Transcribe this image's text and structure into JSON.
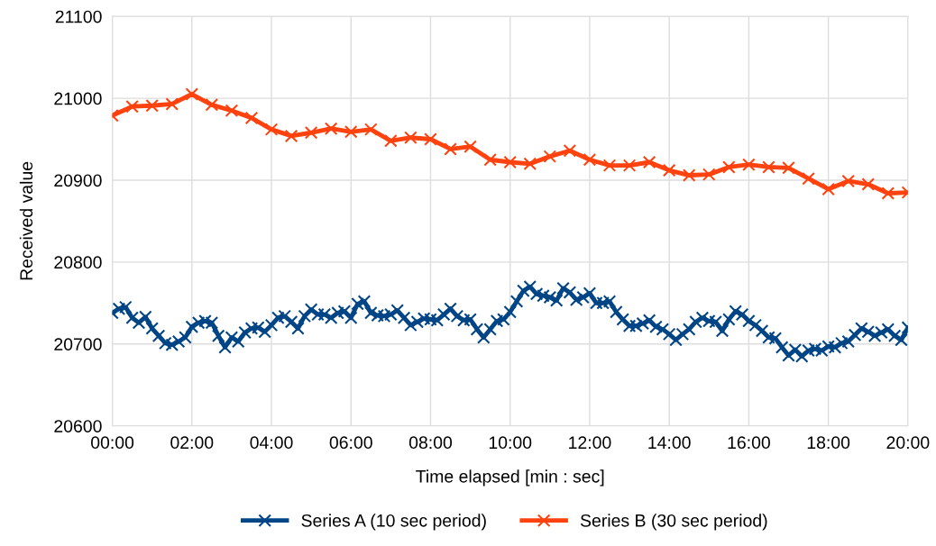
{
  "chart_data": {
    "type": "line",
    "xlabel": "Time elapsed [min : sec]",
    "ylabel": "Received value",
    "xlim": [
      0,
      1200
    ],
    "ylim": [
      20600,
      21100
    ],
    "xticks": [
      {
        "value": 0,
        "label": "00:00"
      },
      {
        "value": 120,
        "label": "02:00"
      },
      {
        "value": 240,
        "label": "04:00"
      },
      {
        "value": 360,
        "label": "06:00"
      },
      {
        "value": 480,
        "label": "08:00"
      },
      {
        "value": 600,
        "label": "10:00"
      },
      {
        "value": 720,
        "label": "12:00"
      },
      {
        "value": 840,
        "label": "14:00"
      },
      {
        "value": 960,
        "label": "16:00"
      },
      {
        "value": 1080,
        "label": "18:00"
      },
      {
        "value": 1200,
        "label": "20:00"
      }
    ],
    "yticks": [
      20600,
      20700,
      20800,
      20900,
      21000,
      21100
    ],
    "grid": true,
    "legend": "bottom",
    "marker": "cross",
    "line_style": "solid",
    "series": [
      {
        "name": "Series A (10 sec period)",
        "color": "#004586",
        "x": [
          0,
          10,
          20,
          30,
          40,
          50,
          60,
          70,
          80,
          90,
          100,
          110,
          120,
          130,
          140,
          150,
          160,
          170,
          180,
          190,
          200,
          210,
          220,
          230,
          240,
          250,
          260,
          270,
          280,
          290,
          300,
          310,
          320,
          330,
          340,
          350,
          360,
          370,
          380,
          390,
          400,
          410,
          420,
          430,
          440,
          450,
          460,
          470,
          480,
          490,
          500,
          510,
          520,
          530,
          540,
          550,
          560,
          570,
          580,
          590,
          600,
          610,
          620,
          630,
          640,
          650,
          660,
          670,
          680,
          690,
          700,
          710,
          720,
          730,
          740,
          750,
          760,
          770,
          780,
          790,
          800,
          810,
          820,
          830,
          840,
          850,
          860,
          870,
          880,
          890,
          900,
          910,
          920,
          930,
          940,
          950,
          960,
          970,
          980,
          990,
          1000,
          1010,
          1020,
          1030,
          1040,
          1050,
          1060,
          1070,
          1080,
          1090,
          1100,
          1110,
          1120,
          1130,
          1140,
          1150,
          1160,
          1170,
          1180,
          1190,
          1200
        ],
        "values": [
          20738,
          20743,
          20745,
          20732,
          20726,
          20733,
          20719,
          20710,
          20701,
          20699,
          20703,
          20708,
          20721,
          20726,
          20728,
          20726,
          20710,
          20696,
          20708,
          20703,
          20714,
          20719,
          20720,
          20715,
          20723,
          20732,
          20734,
          20727,
          20719,
          20734,
          20742,
          20736,
          20736,
          20732,
          20738,
          20740,
          20732,
          20749,
          20752,
          20738,
          20735,
          20734,
          20736,
          20741,
          20732,
          20723,
          20727,
          20731,
          20730,
          20729,
          20736,
          20743,
          20734,
          20729,
          20730,
          20718,
          20708,
          20718,
          20728,
          20730,
          20739,
          20752,
          20765,
          20770,
          20761,
          20759,
          20757,
          20753,
          20768,
          20763,
          20754,
          20757,
          20762,
          20750,
          20750,
          20752,
          20739,
          20730,
          20722,
          20722,
          20725,
          20729,
          20721,
          20718,
          20712,
          20705,
          20712,
          20718,
          20727,
          20732,
          20728,
          20727,
          20716,
          20730,
          20740,
          20736,
          20728,
          20723,
          20716,
          20708,
          20707,
          20696,
          20686,
          20693,
          20685,
          20692,
          20694,
          20692,
          20697,
          20696,
          20701,
          20703,
          20711,
          20719,
          20715,
          20710,
          20714,
          20718,
          20710,
          20705,
          20720
        ]
      },
      {
        "name": "Series B (30 sec period)",
        "color": "#ff420e",
        "x": [
          0,
          30,
          60,
          90,
          120,
          150,
          180,
          210,
          240,
          270,
          300,
          330,
          360,
          390,
          420,
          450,
          480,
          510,
          540,
          570,
          600,
          630,
          660,
          690,
          720,
          750,
          780,
          810,
          840,
          870,
          900,
          930,
          960,
          990,
          1020,
          1050,
          1080,
          1110,
          1140,
          1170,
          1200
        ],
        "values": [
          20979,
          20990,
          20991,
          20993,
          21005,
          20992,
          20985,
          20976,
          20962,
          20954,
          20958,
          20963,
          20959,
          20962,
          20948,
          20952,
          20950,
          20938,
          20941,
          20925,
          20922,
          20920,
          20929,
          20936,
          20925,
          20918,
          20918,
          20922,
          20912,
          20906,
          20907,
          20916,
          20919,
          20916,
          20915,
          20902,
          20889,
          20899,
          20895,
          20884,
          20885
        ]
      }
    ]
  }
}
